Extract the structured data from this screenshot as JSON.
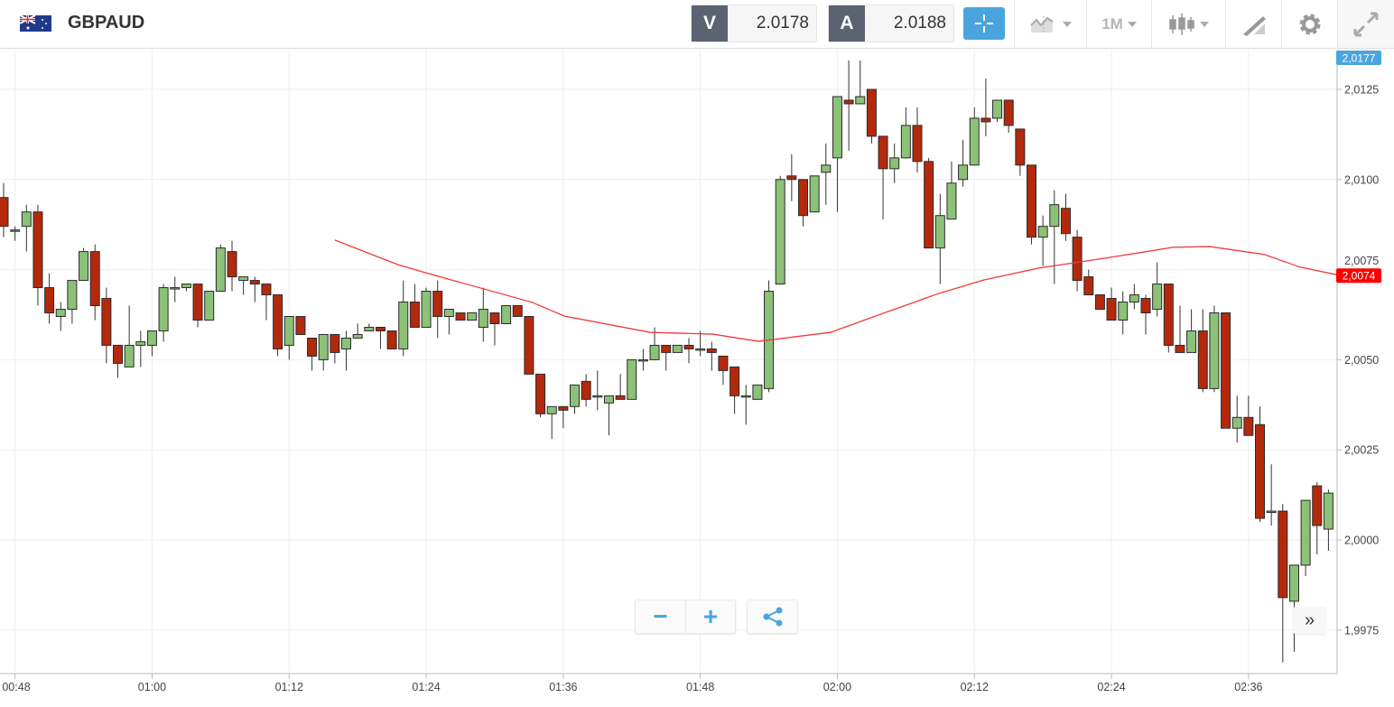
{
  "header": {
    "symbol": "GBPAUD",
    "flag_icon": "uk-australia-flag-icon",
    "sell_label": "V",
    "sell_price": "2.0178",
    "buy_label": "A",
    "buy_price": "2.0188",
    "timeframe": "1M",
    "icons": [
      "crosshair-icon",
      "chart-type-icon",
      "timeframe-dropdown",
      "candlestick-icon",
      "drawing-tools-icon",
      "gear-icon",
      "expand-icon"
    ]
  },
  "controls": {
    "zoom_out": "−",
    "zoom_in": "+",
    "share_icon": "share-icon",
    "scroll_latest": "»"
  },
  "colors": {
    "up": "#8cc178",
    "down": "#b4290c",
    "ma": "#f03a3a",
    "current_price_bg": "#4aa5df",
    "ma_label_bg": "#ff0000"
  },
  "chart_data": {
    "type": "candlestick",
    "title": "GBPAUD",
    "interval_minutes": 1,
    "start_time": "00:47",
    "ylim": [
      1.996,
      2.0138
    ],
    "yticks": [
      "2,0125",
      "2,0100",
      "2,0075",
      "2,0050",
      "2,0025",
      "2,0000",
      "1,9975"
    ],
    "ytick_values": [
      2.0125,
      2.01,
      2.0075,
      2.005,
      2.0025,
      2.0,
      1.9975
    ],
    "xticks": [
      "00:48",
      "01:00",
      "01:12",
      "01:24",
      "01:36",
      "01:48",
      "02:00",
      "02:12",
      "02:24",
      "02:36"
    ],
    "xtick_index": [
      1,
      13,
      25,
      37,
      49,
      61,
      73,
      85,
      97,
      109
    ],
    "current_price_label": "2,0177",
    "current_price": 2.0177,
    "ma_label": "2,0074",
    "grid": true,
    "ohlc_fields": [
      "open",
      "high",
      "low",
      "close"
    ],
    "candles": [
      [
        2.0095,
        2.0099,
        2.0084,
        2.0087
      ],
      [
        2.0086,
        2.0087,
        2.0083,
        2.0086
      ],
      [
        2.0087,
        2.0093,
        2.008,
        2.0091
      ],
      [
        2.0091,
        2.0093,
        2.0065,
        2.007
      ],
      [
        2.007,
        2.0074,
        2.006,
        2.0063
      ],
      [
        2.0062,
        2.0066,
        2.0058,
        2.0064
      ],
      [
        2.0064,
        2.0072,
        2.006,
        2.0072
      ],
      [
        2.0072,
        2.0081,
        2.0072,
        2.008
      ],
      [
        2.008,
        2.0082,
        2.0061,
        2.0065
      ],
      [
        2.0067,
        2.007,
        2.0049,
        2.0054
      ],
      [
        2.0054,
        2.0054,
        2.0045,
        2.0049
      ],
      [
        2.0048,
        2.0065,
        2.0048,
        2.0054
      ],
      [
        2.0054,
        2.0058,
        2.0048,
        2.0055
      ],
      [
        2.0054,
        2.0058,
        2.0051,
        2.0058
      ],
      [
        2.0058,
        2.0071,
        2.0055,
        2.007
      ],
      [
        2.007,
        2.0073,
        2.0066,
        2.007
      ],
      [
        2.007,
        2.0071,
        2.0069,
        2.0071
      ],
      [
        2.0071,
        2.0071,
        2.0059,
        2.0061
      ],
      [
        2.0061,
        2.0069,
        2.0061,
        2.0069
      ],
      [
        2.0069,
        2.0082,
        2.0069,
        2.0081
      ],
      [
        2.008,
        2.0083,
        2.0069,
        2.0073
      ],
      [
        2.0072,
        2.0073,
        2.0068,
        2.0073
      ],
      [
        2.0072,
        2.0073,
        2.0066,
        2.0071
      ],
      [
        2.0071,
        2.0071,
        2.0061,
        2.0068
      ],
      [
        2.0068,
        2.0068,
        2.0051,
        2.0053
      ],
      [
        2.0054,
        2.0062,
        2.005,
        2.0062
      ],
      [
        2.0062,
        2.0062,
        2.0057,
        2.0057
      ],
      [
        2.0056,
        2.0056,
        2.0047,
        2.0051
      ],
      [
        2.005,
        2.0057,
        2.0047,
        2.0057
      ],
      [
        2.0057,
        2.0057,
        2.0049,
        2.0052
      ],
      [
        2.0053,
        2.0058,
        2.0047,
        2.0056
      ],
      [
        2.0056,
        2.006,
        2.0056,
        2.0057
      ],
      [
        2.0058,
        2.006,
        2.0058,
        2.0059
      ],
      [
        2.0059,
        2.0059,
        2.0053,
        2.0058
      ],
      [
        2.0058,
        2.0058,
        2.0053,
        2.0053
      ],
      [
        2.0053,
        2.0072,
        2.0051,
        2.0066
      ],
      [
        2.0066,
        2.0071,
        2.0059,
        2.0059
      ],
      [
        2.0059,
        2.007,
        2.0059,
        2.0069
      ],
      [
        2.0069,
        2.0072,
        2.0056,
        2.0062
      ],
      [
        2.0062,
        2.0064,
        2.0057,
        2.0064
      ],
      [
        2.0063,
        2.0063,
        2.0061,
        2.0061
      ],
      [
        2.0061,
        2.0063,
        2.0061,
        2.0063
      ],
      [
        2.0059,
        2.007,
        2.0055,
        2.0064
      ],
      [
        2.0063,
        2.0063,
        2.0054,
        2.006
      ],
      [
        2.006,
        2.0065,
        2.006,
        2.0065
      ],
      [
        2.0065,
        2.0065,
        2.0062,
        2.0062
      ],
      [
        2.0062,
        2.0062,
        2.0046,
        2.0046
      ],
      [
        2.0046,
        2.0046,
        2.0034,
        2.0035
      ],
      [
        2.0035,
        2.0037,
        2.0028,
        2.0037
      ],
      [
        2.0037,
        2.0037,
        2.0031,
        2.0036
      ],
      [
        2.0037,
        2.0043,
        2.0035,
        2.0043
      ],
      [
        2.0044,
        2.0046,
        2.0037,
        2.0039
      ],
      [
        2.004,
        2.0047,
        2.0036,
        2.004
      ],
      [
        2.0038,
        2.004,
        2.0029,
        2.004
      ],
      [
        2.004,
        2.0046,
        2.0039,
        2.0039
      ],
      [
        2.0039,
        2.005,
        2.0039,
        2.005
      ],
      [
        2.005,
        2.0053,
        2.0047,
        2.005
      ],
      [
        2.005,
        2.0059,
        2.005,
        2.0054
      ],
      [
        2.0054,
        2.0054,
        2.0047,
        2.0052
      ],
      [
        2.0052,
        2.0054,
        2.0052,
        2.0054
      ],
      [
        2.0054,
        2.0056,
        2.0049,
        2.0053
      ],
      [
        2.0053,
        2.0058,
        2.0051,
        2.0053
      ],
      [
        2.0053,
        2.0055,
        2.0047,
        2.0052
      ],
      [
        2.0051,
        2.0051,
        2.0043,
        2.0047
      ],
      [
        2.0048,
        2.0048,
        2.0035,
        2.004
      ],
      [
        2.004,
        2.0043,
        2.0032,
        2.004
      ],
      [
        2.0039,
        2.0043,
        2.0039,
        2.0043
      ],
      [
        2.0042,
        2.0072,
        2.0041,
        2.0069
      ],
      [
        2.0071,
        2.0101,
        2.0071,
        2.01
      ],
      [
        2.0101,
        2.0107,
        2.0094,
        2.01
      ],
      [
        2.01,
        2.01,
        2.0087,
        2.009
      ],
      [
        2.0091,
        2.0101,
        2.0091,
        2.0101
      ],
      [
        2.0102,
        2.011,
        2.0093,
        2.0104
      ],
      [
        2.0106,
        2.0123,
        2.0091,
        2.0123
      ],
      [
        2.0122,
        2.0133,
        2.0108,
        2.0121
      ],
      [
        2.0121,
        2.0133,
        2.0121,
        2.0123
      ],
      [
        2.0125,
        2.0125,
        2.011,
        2.0112
      ],
      [
        2.0112,
        2.0112,
        2.0089,
        2.0103
      ],
      [
        2.0103,
        2.011,
        2.0099,
        2.0106
      ],
      [
        2.0106,
        2.012,
        2.0106,
        2.0115
      ],
      [
        2.0115,
        2.012,
        2.0102,
        2.0105
      ],
      [
        2.0105,
        2.0106,
        2.0081,
        2.0081
      ],
      [
        2.0081,
        2.0096,
        2.0071,
        2.009
      ],
      [
        2.0089,
        2.0105,
        2.0089,
        2.0099
      ],
      [
        2.01,
        2.0111,
        2.0098,
        2.0104
      ],
      [
        2.0104,
        2.012,
        2.0104,
        2.0117
      ],
      [
        2.0117,
        2.0128,
        2.0112,
        2.0116
      ],
      [
        2.0117,
        2.0122,
        2.0116,
        2.0122
      ],
      [
        2.0122,
        2.0122,
        2.0113,
        2.0115
      ],
      [
        2.0114,
        2.0114,
        2.0101,
        2.0104
      ],
      [
        2.0104,
        2.0104,
        2.0082,
        2.0084
      ],
      [
        2.0084,
        2.009,
        2.0076,
        2.0087
      ],
      [
        2.0087,
        2.0097,
        2.0071,
        2.0093
      ],
      [
        2.0092,
        2.0096,
        2.0083,
        2.0085
      ],
      [
        2.0084,
        2.0086,
        2.0069,
        2.0072
      ],
      [
        2.0073,
        2.0075,
        2.0068,
        2.0068
      ],
      [
        2.0068,
        2.0068,
        2.0064,
        2.0064
      ],
      [
        2.0067,
        2.007,
        2.0061,
        2.0061
      ],
      [
        2.0061,
        2.0069,
        2.0057,
        2.0066
      ],
      [
        2.0066,
        2.0071,
        2.0064,
        2.0068
      ],
      [
        2.0067,
        2.0068,
        2.0057,
        2.0063
      ],
      [
        2.0064,
        2.0077,
        2.0062,
        2.0071
      ],
      [
        2.0071,
        2.0071,
        2.0052,
        2.0054
      ],
      [
        2.0054,
        2.0065,
        2.0052,
        2.0052
      ],
      [
        2.0052,
        2.0064,
        2.0052,
        2.0058
      ],
      [
        2.0058,
        2.0064,
        2.0041,
        2.0042
      ],
      [
        2.0042,
        2.0065,
        2.0041,
        2.0063
      ],
      [
        2.0063,
        2.0063,
        2.0031,
        2.0031
      ],
      [
        2.0031,
        2.004,
        2.0027,
        2.0034
      ],
      [
        2.0034,
        2.004,
        2.0029,
        2.0029
      ],
      [
        2.0032,
        2.0037,
        2.0005,
        2.0006
      ],
      [
        2.0008,
        2.0021,
        2.0004,
        2.0008
      ],
      [
        2.0008,
        2.001,
        1.9966,
        1.9984
      ],
      [
        1.9983,
        1.9993,
        1.9969,
        1.9993
      ],
      [
        1.9993,
        2.0011,
        1.999,
        2.0011
      ],
      [
        2.0015,
        2.0016,
        1.9996,
        2.0004
      ],
      [
        2.0003,
        2.0014,
        1.9997,
        2.0013
      ]
    ],
    "moving_average": {
      "index": [
        29,
        34.5,
        37.2,
        46.3,
        49.1,
        56.6,
        62.1,
        66.1,
        72.4,
        77.2,
        81.9,
        85.8,
        90.6,
        96.9,
        102.4,
        105.6,
        110.4,
        113.5,
        116.7
      ],
      "values": [
        2.00832,
        2.00764,
        2.00739,
        2.00659,
        2.00621,
        2.00576,
        2.00571,
        2.00551,
        2.00576,
        2.00631,
        2.00684,
        2.00721,
        2.00754,
        2.00784,
        2.00812,
        2.00814,
        2.00792,
        2.00757,
        2.00736
      ]
    }
  }
}
